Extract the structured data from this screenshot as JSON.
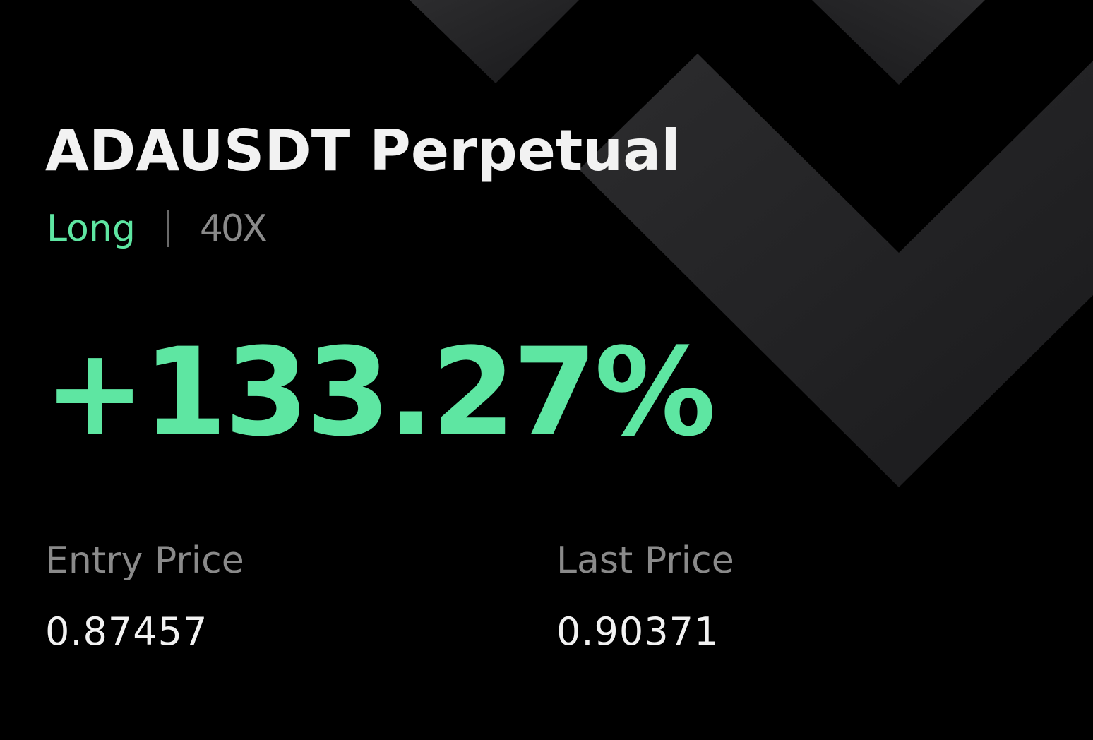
{
  "colors": {
    "background": "#000000",
    "title": "#f2f2f2",
    "accent_green": "#5ee6a2",
    "muted": "#8a8a8a",
    "value": "#f2f2f2",
    "divider": "#6a6a6a",
    "chevron_dark": "#1a1a1c",
    "chevron_light": "#2c2c2e"
  },
  "background_icon": "chevron-pattern",
  "position": {
    "symbol_title": "ADAUSDT Perpetual",
    "side": "Long",
    "leverage": "40X"
  },
  "pnl": {
    "roi_text": "+133.27%"
  },
  "prices": {
    "entry": {
      "label": "Entry Price",
      "value": "0.87457"
    },
    "last": {
      "label": "Last Price",
      "value": "0.90371"
    }
  }
}
